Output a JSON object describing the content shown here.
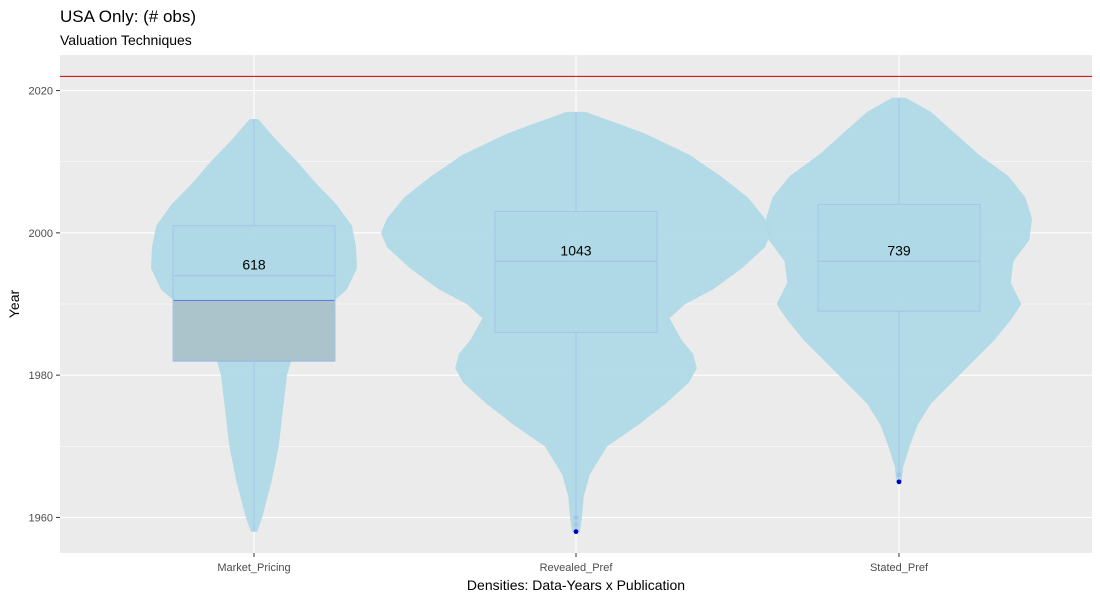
{
  "chart_data": {
    "type": "violin",
    "title": "USA Only: (# obs)",
    "subtitle": "Valuation Techniques",
    "xlabel": "Densities: Data-Years x Publication",
    "ylabel": "Year",
    "categories": [
      "Market_Pricing",
      "Revealed_Pref",
      "Stated_Pref"
    ],
    "ylim": [
      1955,
      2025
    ],
    "yticks": [
      1960,
      1980,
      2000,
      2020
    ],
    "reference_line": {
      "y": 2022,
      "color": "#cc0000"
    },
    "counts": [
      "618",
      "1043",
      "739"
    ],
    "boxes": [
      {
        "category": "Market_Pricing",
        "q1": 1982,
        "median": 1994,
        "q3": 2001,
        "min": 1958,
        "max": 2016,
        "outliers": []
      },
      {
        "category": "Revealed_Pref",
        "q1": 1986,
        "median": 1996,
        "q3": 2003,
        "min": 1958,
        "max": 2017,
        "outliers": [
          1958,
          1959,
          1960
        ]
      },
      {
        "category": "Stated_Pref",
        "q1": 1989,
        "median": 1996,
        "q3": 2004,
        "min": 1965,
        "max": 2019,
        "outliers": [
          1965,
          1966
        ]
      }
    ],
    "densities": [
      {
        "category": "Market_Pricing",
        "profile": [
          [
            1958,
            0.03
          ],
          [
            1960,
            0.08
          ],
          [
            1965,
            0.17
          ],
          [
            1970,
            0.24
          ],
          [
            1975,
            0.28
          ],
          [
            1980,
            0.32
          ],
          [
            1983,
            0.38
          ],
          [
            1986,
            0.5
          ],
          [
            1988,
            0.6
          ],
          [
            1990,
            0.74
          ],
          [
            1992,
            0.9
          ],
          [
            1995,
            1.0
          ],
          [
            1998,
            0.99
          ],
          [
            2001,
            0.95
          ],
          [
            2004,
            0.8
          ],
          [
            2007,
            0.6
          ],
          [
            2010,
            0.42
          ],
          [
            2013,
            0.22
          ],
          [
            2016,
            0.04
          ]
        ]
      },
      {
        "category": "Revealed_Pref",
        "profile": [
          [
            1958,
            0.02
          ],
          [
            1960,
            0.03
          ],
          [
            1963,
            0.04
          ],
          [
            1966,
            0.07
          ],
          [
            1970,
            0.16
          ],
          [
            1973,
            0.32
          ],
          [
            1976,
            0.46
          ],
          [
            1979,
            0.58
          ],
          [
            1981,
            0.62
          ],
          [
            1983,
            0.6
          ],
          [
            1985,
            0.54
          ],
          [
            1988,
            0.48
          ],
          [
            1990,
            0.56
          ],
          [
            1992,
            0.7
          ],
          [
            1995,
            0.85
          ],
          [
            1998,
            0.97
          ],
          [
            2000,
            1.0
          ],
          [
            2002,
            0.97
          ],
          [
            2005,
            0.88
          ],
          [
            2008,
            0.74
          ],
          [
            2011,
            0.58
          ],
          [
            2014,
            0.35
          ],
          [
            2017,
            0.05
          ]
        ]
      },
      {
        "category": "Stated_Pref",
        "profile": [
          [
            1965,
            0.02
          ],
          [
            1967,
            0.03
          ],
          [
            1970,
            0.08
          ],
          [
            1973,
            0.14
          ],
          [
            1976,
            0.24
          ],
          [
            1979,
            0.4
          ],
          [
            1982,
            0.56
          ],
          [
            1985,
            0.72
          ],
          [
            1988,
            0.85
          ],
          [
            1990,
            0.92
          ],
          [
            1993,
            0.84
          ],
          [
            1996,
            0.86
          ],
          [
            1999,
            0.98
          ],
          [
            2002,
            1.0
          ],
          [
            2005,
            0.95
          ],
          [
            2008,
            0.82
          ],
          [
            2011,
            0.6
          ],
          [
            2014,
            0.42
          ],
          [
            2017,
            0.24
          ],
          [
            2019,
            0.05
          ]
        ]
      }
    ],
    "highlight_box": {
      "category": "Market_Pricing",
      "y_range": [
        1982,
        1990.5
      ],
      "fill": "#a9a9a9",
      "border": "#0000cc"
    },
    "colors": {
      "panel_bg": "#ebebeb",
      "grid": "#ffffff",
      "violin_fill": "#add8e6",
      "box_stroke": "#a6c4ec",
      "outlier": "#0000cc"
    }
  }
}
